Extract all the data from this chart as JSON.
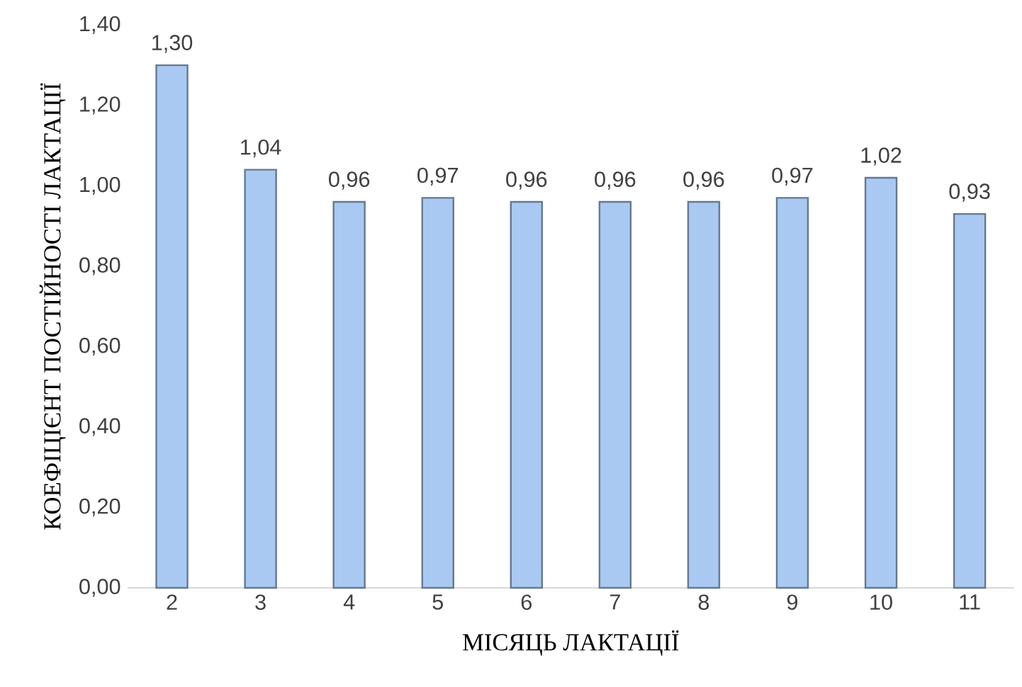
{
  "chart_data": {
    "type": "bar",
    "xlabel": "МІСЯЦЬ ЛАКТАЦІЇ",
    "ylabel": "КОЕФІЦІЄНТ ПОСТІЙНОСТІ ЛАКТАЦІЇ",
    "categories": [
      "2",
      "3",
      "4",
      "5",
      "6",
      "7",
      "8",
      "9",
      "10",
      "11"
    ],
    "values": [
      1.3,
      1.04,
      0.96,
      0.97,
      0.96,
      0.96,
      0.96,
      0.97,
      1.02,
      0.93
    ],
    "value_labels": [
      "1,30",
      "1,04",
      "0,96",
      "0,97",
      "0,96",
      "0,96",
      "0,96",
      "0,97",
      "1,02",
      "0,93"
    ],
    "color": "#a9c9f2",
    "ylim": [
      0,
      1.4
    ],
    "yticks": [
      {
        "value": 0,
        "label": "0,00"
      },
      {
        "value": 0.2,
        "label": "0,20"
      },
      {
        "value": 0.4,
        "label": "0,40"
      },
      {
        "value": 0.6,
        "label": "0,60"
      },
      {
        "value": 0.8,
        "label": "0,80"
      },
      {
        "value": 1.0,
        "label": "1,00"
      },
      {
        "value": 1.2,
        "label": "1,20"
      },
      {
        "value": 1.4,
        "label": "1,40"
      }
    ],
    "legend": false
  }
}
